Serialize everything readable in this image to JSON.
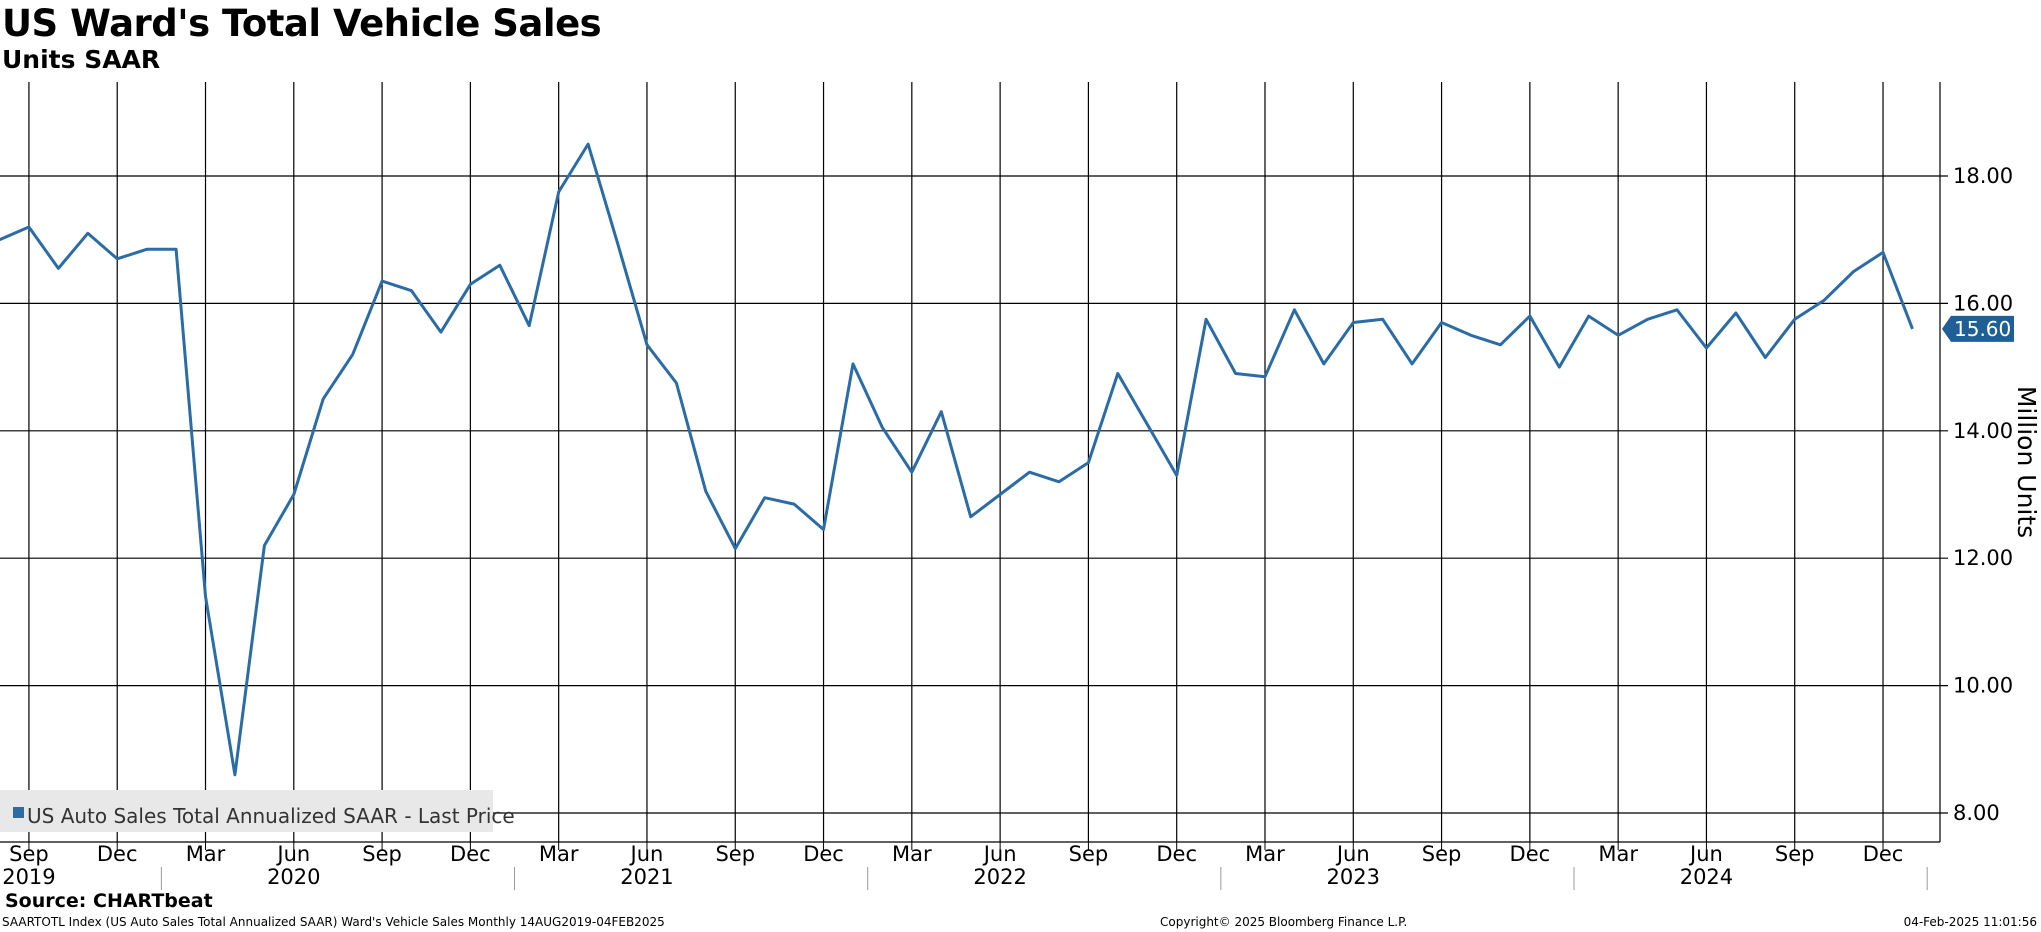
{
  "title": "US Ward's Total Vehicle Sales",
  "subtitle": "Units SAAR",
  "source": "Source: CHARTbeat",
  "footer": {
    "left": "SAARTOTL Index (US Auto Sales Total Annualized SAAR) Ward's Vehicle Sales  Monthly 14AUG2019-04FEB2025",
    "center": "Copyright© 2025 Bloomberg Finance L.P.",
    "right": "04-Feb-2025 11:01:56"
  },
  "colors": {
    "line": "#2b6ca6",
    "grid": "#000000",
    "legend_bg": "#e8e8e8"
  },
  "chart_data": {
    "type": "line",
    "ylabel": "Million Units",
    "ylim": [
      7.8,
      19.5
    ],
    "y_ticks": [
      "8.00",
      "10.00",
      "12.00",
      "14.00",
      "16.00",
      "18.00"
    ],
    "last_value_label": "15.60",
    "legend": {
      "label": "US Auto Sales Total Annualized SAAR - Last Price",
      "placement": "bottom-left"
    },
    "x_month_labels": [
      "Sep",
      "Dec",
      "Mar",
      "Jun",
      "Sep",
      "Dec",
      "Mar",
      "Jun",
      "Sep",
      "Dec",
      "Mar",
      "Jun",
      "Sep",
      "Dec",
      "Mar",
      "Jun",
      "Sep",
      "Dec",
      "Mar",
      "Jun",
      "Sep",
      "Dec"
    ],
    "x_year_labels": [
      "2019",
      "2020",
      "2021",
      "2022",
      "2023",
      "2024"
    ],
    "series": [
      {
        "name": "US Auto Sales Total Annualized SAAR - Last Price",
        "x": [
          "2019-08",
          "2019-09",
          "2019-10",
          "2019-11",
          "2019-12",
          "2020-01",
          "2020-02",
          "2020-03",
          "2020-04",
          "2020-05",
          "2020-06",
          "2020-07",
          "2020-08",
          "2020-09",
          "2020-10",
          "2020-11",
          "2020-12",
          "2021-01",
          "2021-02",
          "2021-03",
          "2021-04",
          "2021-05",
          "2021-06",
          "2021-07",
          "2021-08",
          "2021-09",
          "2021-10",
          "2021-11",
          "2021-12",
          "2022-01",
          "2022-02",
          "2022-03",
          "2022-04",
          "2022-05",
          "2022-06",
          "2022-07",
          "2022-08",
          "2022-09",
          "2022-10",
          "2022-11",
          "2022-12",
          "2023-01",
          "2023-02",
          "2023-03",
          "2023-04",
          "2023-05",
          "2023-06",
          "2023-07",
          "2023-08",
          "2023-09",
          "2023-10",
          "2023-11",
          "2023-12",
          "2024-01",
          "2024-02",
          "2024-03",
          "2024-04",
          "2024-05",
          "2024-06",
          "2024-07",
          "2024-08",
          "2024-09",
          "2024-10",
          "2024-11",
          "2024-12",
          "2025-01"
        ],
        "values": [
          17.0,
          17.2,
          16.55,
          17.1,
          16.7,
          16.85,
          16.85,
          11.4,
          8.6,
          12.2,
          13.0,
          14.5,
          15.2,
          16.35,
          16.2,
          15.55,
          16.3,
          16.6,
          15.65,
          17.75,
          18.5,
          16.95,
          15.35,
          14.75,
          13.05,
          12.15,
          12.95,
          12.85,
          12.45,
          15.05,
          14.05,
          13.35,
          14.3,
          12.65,
          13.0,
          13.35,
          13.2,
          13.5,
          14.9,
          14.1,
          13.3,
          15.75,
          14.9,
          14.85,
          15.9,
          15.05,
          15.7,
          15.75,
          15.05,
          15.7,
          15.5,
          15.35,
          15.8,
          15.0,
          15.8,
          15.5,
          15.75,
          15.9,
          15.3,
          15.85,
          15.15,
          15.75,
          16.05,
          16.5,
          16.8,
          15.6
        ]
      }
    ]
  }
}
